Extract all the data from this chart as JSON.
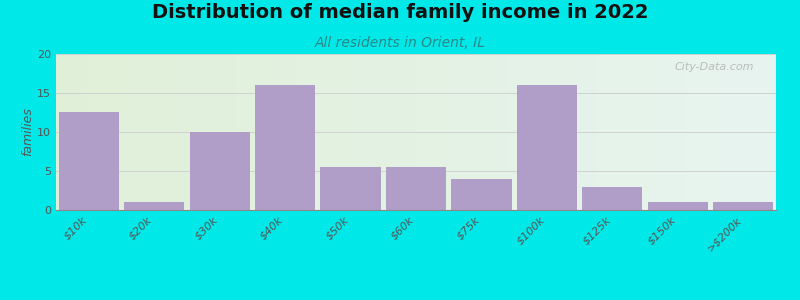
{
  "title": "Distribution of median family income in 2022",
  "subtitle": "All residents in Orient, IL",
  "watermark": "City-Data.com",
  "categories": [
    "$10k",
    "$20k",
    "$30k",
    "$40k",
    "$50k",
    "$60k",
    "$75k",
    "$100k",
    "$125k",
    "$150k",
    ">$200k"
  ],
  "values": [
    12.5,
    1,
    10,
    16,
    5.5,
    5.5,
    4,
    16,
    3,
    1,
    1
  ],
  "bar_color": "#b09ec8",
  "background_outer": "#00e8e8",
  "background_plot_left": "#e0f0d8",
  "background_plot_right": "#e8f4f0",
  "ylabel": "families",
  "ylim": [
    0,
    20
  ],
  "yticks": [
    0,
    5,
    10,
    15,
    20
  ],
  "title_fontsize": 14,
  "subtitle_fontsize": 10,
  "ylabel_fontsize": 9,
  "tick_fontsize": 8
}
